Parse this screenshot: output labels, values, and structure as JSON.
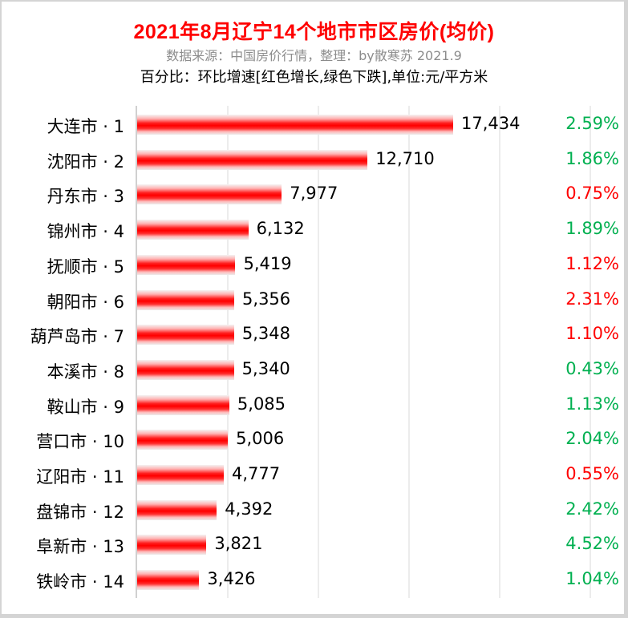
{
  "header": {
    "title": "2021年8月辽宁14个地市市区房价(均价)",
    "subtitle": "数据来源：中国房价行情，整理：by散寒苏 2021.9",
    "note": "百分比：环比增速[红色增长,绿色下跌],单位:元/平方米"
  },
  "colors": {
    "bar": "#ff0000",
    "increase": "#ff0000",
    "decrease": "#00b050",
    "grid": "#ececec"
  },
  "rows": [
    {
      "label": "大连市 · 1",
      "value": "17,434",
      "pct": "2.59%",
      "trend": "down"
    },
    {
      "label": "沈阳市 · 2",
      "value": "12,710",
      "pct": "1.86%",
      "trend": "down"
    },
    {
      "label": "丹东市 · 3",
      "value": "7,977",
      "pct": "0.75%",
      "trend": "up"
    },
    {
      "label": "锦州市 · 4",
      "value": "6,132",
      "pct": "1.89%",
      "trend": "down"
    },
    {
      "label": "抚顺市 · 5",
      "value": "5,419",
      "pct": "1.12%",
      "trend": "up"
    },
    {
      "label": "朝阳市 · 6",
      "value": "5,356",
      "pct": "2.31%",
      "trend": "up"
    },
    {
      "label": "葫芦岛市 · 7",
      "value": "5,348",
      "pct": "1.10%",
      "trend": "up"
    },
    {
      "label": "本溪市 · 8",
      "value": "5,340",
      "pct": "0.43%",
      "trend": "down"
    },
    {
      "label": "鞍山市 · 9",
      "value": "5,085",
      "pct": "1.13%",
      "trend": "down"
    },
    {
      "label": "营口市 · 10",
      "value": "5,006",
      "pct": "2.04%",
      "trend": "down"
    },
    {
      "label": "辽阳市 · 11",
      "value": "4,777",
      "pct": "0.55%",
      "trend": "up"
    },
    {
      "label": "盘锦市 · 12",
      "value": "4,392",
      "pct": "2.42%",
      "trend": "down"
    },
    {
      "label": "阜新市 · 13",
      "value": "3,821",
      "pct": "4.52%",
      "trend": "down"
    },
    {
      "label": "铁岭市 · 14",
      "value": "3,426",
      "pct": "1.04%",
      "trend": "down"
    }
  ],
  "chart_data": {
    "type": "bar",
    "orientation": "horizontal",
    "title": "2021年8月辽宁14个地市市区房价(均价)",
    "subtitle": "数据来源：中国房价行情，整理：by散寒苏 2021.9",
    "annotation": "百分比：环比增速[红色增长,绿色下跌],单位:元/平方米",
    "categories": [
      "大连市 · 1",
      "沈阳市 · 2",
      "丹东市 · 3",
      "锦州市 · 4",
      "抚顺市 · 5",
      "朝阳市 · 6",
      "葫芦岛市 · 7",
      "本溪市 · 8",
      "鞍山市 · 9",
      "营口市 · 10",
      "辽阳市 · 11",
      "盘锦市 · 12",
      "阜新市 · 13",
      "铁岭市 · 14"
    ],
    "series": [
      {
        "name": "均价(元/平方米)",
        "values": [
          17434,
          12710,
          7977,
          6132,
          5419,
          5356,
          5348,
          5340,
          5085,
          5006,
          4777,
          4392,
          3821,
          3426
        ]
      },
      {
        "name": "环比增速(%)",
        "values": [
          2.59,
          1.86,
          0.75,
          1.89,
          1.12,
          2.31,
          1.1,
          0.43,
          1.13,
          2.04,
          0.55,
          2.42,
          4.52,
          1.04
        ],
        "colors": [
          "green",
          "green",
          "red",
          "green",
          "red",
          "red",
          "red",
          "green",
          "green",
          "green",
          "red",
          "green",
          "green",
          "green"
        ]
      }
    ],
    "xlabel": "",
    "ylabel": "",
    "xlim": [
      0,
      25000
    ],
    "grid": true,
    "gridlines_at": [
      0,
      5000,
      10000,
      15000,
      20000,
      25000
    ],
    "legend": "none"
  }
}
